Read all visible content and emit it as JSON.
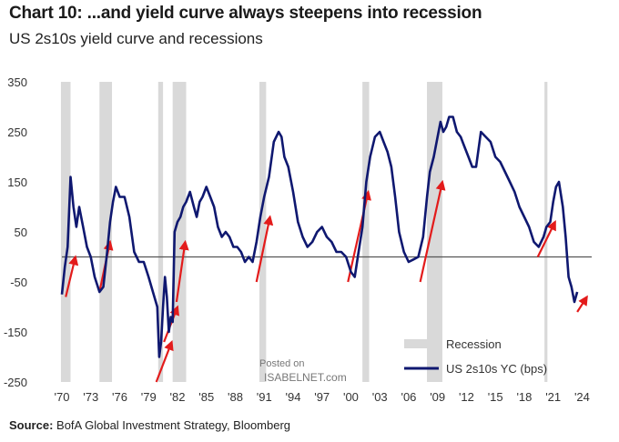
{
  "title": "Chart 10: ...and yield curve always steepens into recession",
  "subtitle": "US 2s10s yield curve and recessions",
  "source": {
    "label": "Source:",
    "text": "BofA Global Investment Strategy, Bloomberg"
  },
  "watermark": {
    "line1": "Posted on",
    "line2": "ISABELNET.com"
  },
  "colors": {
    "line": "#0f1870",
    "recession": "#d9d9d9",
    "arrow": "#e31b1b",
    "zero": "#555555",
    "text": "#333333"
  },
  "chart_data": {
    "type": "line",
    "xlim": [
      1970,
      2025
    ],
    "ylim": [
      -250,
      350
    ],
    "y_ticks": [
      350,
      250,
      150,
      50,
      -50,
      -150,
      -250
    ],
    "x_tick_labels": [
      "'70",
      "'73",
      "'76",
      "'79",
      "'82",
      "'85",
      "'88",
      "'91",
      "'94",
      "'97",
      "'00",
      "'03",
      "'06",
      "'09",
      "'12",
      "'15",
      "'18",
      "'21",
      "'24"
    ],
    "x_tick_years": [
      1970,
      1973,
      1976,
      1979,
      1982,
      1985,
      1988,
      1991,
      1994,
      1997,
      2000,
      2003,
      2006,
      2009,
      2012,
      2015,
      2018,
      2021,
      2024
    ],
    "legend": [
      {
        "label": "Recession",
        "kind": "recession"
      },
      {
        "label": "US 2s10s YC (bps)",
        "kind": "line"
      }
    ],
    "legend_position": "bottom-right",
    "zero_line": true,
    "recessions": [
      [
        1969.9,
        1970.9
      ],
      [
        1973.9,
        1975.2
      ],
      [
        1980.0,
        1980.5
      ],
      [
        1981.5,
        1982.9
      ],
      [
        1990.5,
        1991.2
      ],
      [
        2001.2,
        2001.9
      ],
      [
        2007.9,
        2009.5
      ],
      [
        2020.1,
        2020.4
      ]
    ],
    "series": [
      {
        "x": [
          1970.0,
          1970.3,
          1970.6,
          1970.9,
          1971.2,
          1971.5,
          1971.8,
          1972.2,
          1972.6,
          1973.0,
          1973.4,
          1973.9,
          1974.3,
          1974.7,
          1975.0,
          1975.3,
          1975.6,
          1976.0,
          1976.5,
          1977.0,
          1977.5,
          1978.0,
          1978.5,
          1979.0,
          1979.3,
          1979.6,
          1979.9,
          1980.1,
          1980.3,
          1980.5,
          1980.7,
          1980.9,
          1981.1,
          1981.3,
          1981.5,
          1981.7,
          1982.0,
          1982.3,
          1982.6,
          1982.9,
          1983.3,
          1983.7,
          1984.0,
          1984.3,
          1984.6,
          1985.0,
          1985.4,
          1985.8,
          1986.2,
          1986.6,
          1987.0,
          1987.4,
          1987.8,
          1988.2,
          1988.6,
          1989.0,
          1989.4,
          1989.8,
          1990.2,
          1990.6,
          1991.0,
          1991.5,
          1992.0,
          1992.5,
          1992.8,
          1993.1,
          1993.5,
          1994.0,
          1994.5,
          1995.0,
          1995.5,
          1996.0,
          1996.5,
          1997.0,
          1997.5,
          1998.0,
          1998.5,
          1999.0,
          1999.5,
          2000.0,
          2000.4,
          2000.8,
          2001.2,
          2001.6,
          2002.0,
          2002.5,
          2003.0,
          2003.4,
          2003.8,
          2004.2,
          2004.6,
          2005.0,
          2005.5,
          2006.0,
          2006.5,
          2007.0,
          2007.5,
          2007.9,
          2008.2,
          2008.6,
          2009.0,
          2009.3,
          2009.6,
          2009.9,
          2010.2,
          2010.6,
          2011.0,
          2011.4,
          2011.8,
          2012.2,
          2012.6,
          2013.0,
          2013.5,
          2014.0,
          2014.5,
          2015.0,
          2015.5,
          2016.0,
          2016.5,
          2017.0,
          2017.5,
          2018.0,
          2018.5,
          2019.0,
          2019.5,
          2020.0,
          2020.3,
          2020.7,
          2021.0,
          2021.3,
          2021.6,
          2022.0,
          2022.3,
          2022.6,
          2022.9,
          2023.2,
          2023.5
        ],
        "y": [
          -75,
          -20,
          20,
          160,
          100,
          60,
          100,
          60,
          20,
          0,
          -40,
          -70,
          -60,
          10,
          70,
          110,
          140,
          120,
          120,
          80,
          10,
          -10,
          -10,
          -40,
          -60,
          -80,
          -100,
          -200,
          -170,
          -100,
          -40,
          -80,
          -150,
          -120,
          -130,
          50,
          70,
          80,
          100,
          110,
          130,
          100,
          80,
          110,
          120,
          140,
          120,
          100,
          60,
          40,
          50,
          40,
          20,
          20,
          10,
          -10,
          0,
          -10,
          30,
          80,
          120,
          160,
          230,
          250,
          240,
          200,
          180,
          130,
          70,
          40,
          20,
          30,
          50,
          60,
          40,
          30,
          10,
          10,
          0,
          -30,
          -40,
          10,
          60,
          150,
          200,
          240,
          250,
          230,
          210,
          180,
          120,
          50,
          10,
          -10,
          -5,
          0,
          40,
          120,
          170,
          200,
          240,
          270,
          250,
          260,
          280,
          280,
          250,
          240,
          220,
          200,
          180,
          180,
          250,
          240,
          230,
          200,
          190,
          170,
          150,
          130,
          100,
          80,
          60,
          30,
          20,
          40,
          60,
          70,
          110,
          140,
          150,
          100,
          40,
          -40,
          -60,
          -90,
          -70
        ]
      }
    ]
  }
}
